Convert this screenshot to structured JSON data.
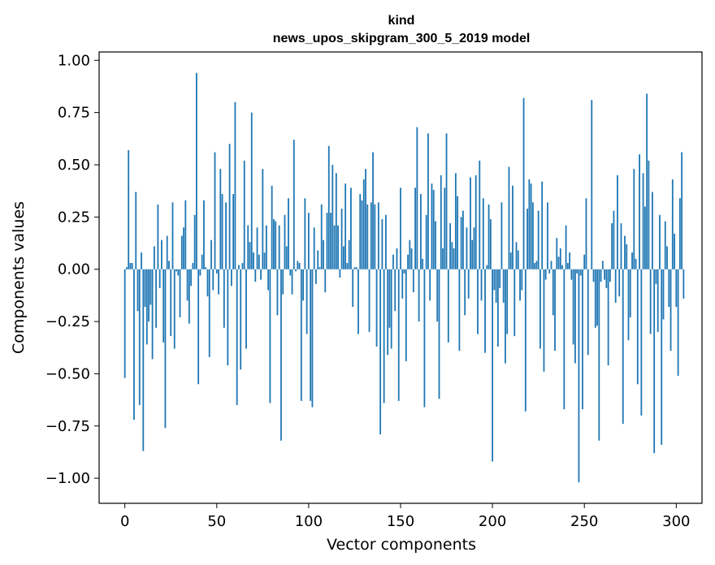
{
  "chart_data": {
    "type": "bar",
    "title": "kind",
    "subtitle": "news_upos_skipgram_300_5_2019 model",
    "xlabel": "Vector components",
    "ylabel": "Components values",
    "xlim": [
      -14,
      314
    ],
    "ylim": [
      -1.12,
      1.04
    ],
    "xticks": [
      0,
      50,
      100,
      150,
      200,
      250,
      300
    ],
    "yticks": [
      -1.0,
      -0.75,
      -0.5,
      -0.25,
      0.0,
      0.25,
      0.5,
      0.75,
      1.0
    ],
    "xtick_labels": [
      "0",
      "50",
      "100",
      "150",
      "200",
      "250",
      "300"
    ],
    "ytick_labels": [
      "−1.00",
      "−0.75",
      "−0.50",
      "−0.25",
      "0.00",
      "0.25",
      "0.50",
      "0.75",
      "1.00"
    ],
    "bar_color": "#1f77b4",
    "values": [
      -0.52,
      0.01,
      0.57,
      0.03,
      0.03,
      -0.72,
      0.37,
      -0.2,
      -0.65,
      0.08,
      -0.87,
      -0.18,
      -0.36,
      -0.25,
      -0.17,
      -0.43,
      0.11,
      -0.28,
      0.31,
      -0.09,
      0.14,
      -0.35,
      -0.76,
      0.16,
      0.04,
      -0.32,
      0.32,
      -0.38,
      -0.01,
      -0.03,
      -0.23,
      0.16,
      0.2,
      0.33,
      -0.15,
      -0.26,
      -0.08,
      0.03,
      0.26,
      0.94,
      -0.55,
      -0.03,
      0.07,
      0.33,
      0.01,
      -0.13,
      -0.42,
      0.14,
      -0.1,
      0.56,
      -0.02,
      -0.12,
      0.48,
      0.36,
      -0.28,
      0.32,
      -0.46,
      0.6,
      -0.08,
      0.36,
      0.8,
      -0.65,
      0.02,
      -0.48,
      0.03,
      0.52,
      -0.38,
      0.21,
      0.13,
      0.75,
      0.08,
      -0.06,
      0.2,
      0.07,
      -0.05,
      0.48,
      0.08,
      0.21,
      -0.1,
      -0.64,
      0.4,
      0.24,
      0.23,
      -0.22,
      0.21,
      -0.82,
      -0.12,
      0.26,
      0.11,
      0.34,
      -0.03,
      -0.12,
      0.62,
      -0.01,
      0.04,
      0.03,
      -0.63,
      -0.15,
      0.34,
      -0.31,
      0.27,
      -0.63,
      -0.66,
      0.2,
      -0.07,
      0.09,
      0.01,
      0.31,
      0.14,
      -0.11,
      0.27,
      0.59,
      0.27,
      0.5,
      0.21,
      0.46,
      0.21,
      -0.04,
      0.29,
      0.11,
      0.41,
      0.03,
      0.14,
      0.39,
      -0.18,
      0.01,
      0.01,
      -0.31,
      0.36,
      0.33,
      0.43,
      0.48,
      0.31,
      -0.3,
      0.32,
      0.56,
      0.31,
      -0.37,
      0.32,
      -0.79,
      0.24,
      -0.64,
      0.26,
      -0.41,
      -0.28,
      -0.38,
      0.07,
      -0.2,
      0.1,
      -0.63,
      0.39,
      -0.14,
      -0.02,
      -0.44,
      0.07,
      0.14,
      0.1,
      -0.11,
      0.39,
      0.68,
      -0.25,
      0.36,
      0.05,
      -0.66,
      0.26,
      0.65,
      -0.15,
      0.41,
      0.38,
      0.23,
      -0.25,
      -0.62,
      0.45,
      0.1,
      0.39,
      0.65,
      -0.35,
      0.22,
      0.13,
      0.1,
      0.46,
      0.35,
      -0.39,
      0.25,
      0.28,
      -0.22,
      0.2,
      -0.14,
      0.44,
      0.14,
      0.2,
      0.45,
      -0.31,
      0.52,
      -0.15,
      0.34,
      -0.4,
      0.02,
      0.31,
      0.24,
      -0.92,
      -0.1,
      -0.16,
      -0.37,
      -0.09,
      0.32,
      -0.16,
      -0.45,
      -0.31,
      0.49,
      0.08,
      0.4,
      -0.32,
      0.13,
      0.09,
      -0.15,
      -0.1,
      0.82,
      -0.68,
      0.29,
      0.43,
      0.41,
      0.32,
      0.03,
      0.04,
      0.28,
      -0.38,
      0.42,
      -0.49,
      -0.05,
      0.32,
      -0.02,
      0.04,
      -0.22,
      -0.39,
      0.15,
      0.06,
      0.1,
      0.02,
      -0.67,
      0.21,
      0.03,
      0.08,
      -0.05,
      -0.36,
      -0.45,
      -0.02,
      -1.02,
      -0.03,
      -0.67,
      0.07,
      0.34,
      -0.41,
      0.0,
      0.81,
      -0.06,
      -0.28,
      -0.27,
      -0.82,
      -0.06,
      0.04,
      -0.05,
      -0.09,
      -0.46,
      -0.06,
      0.22,
      0.28,
      -0.16,
      0.45,
      -0.13,
      0.22,
      -0.74,
      0.16,
      0.12,
      -0.34,
      -0.23,
      0.08,
      0.48,
      0.05,
      -0.55,
      0.55,
      -0.7,
      0.46,
      0.3,
      0.84,
      0.52,
      -0.31,
      0.37,
      -0.88,
      -0.07,
      -0.3,
      0.26,
      -0.84,
      -0.24,
      0.23,
      0.11,
      -0.18,
      -0.39,
      0.43,
      0.17,
      -0.18,
      -0.51,
      0.34,
      0.56,
      -0.14
    ]
  }
}
